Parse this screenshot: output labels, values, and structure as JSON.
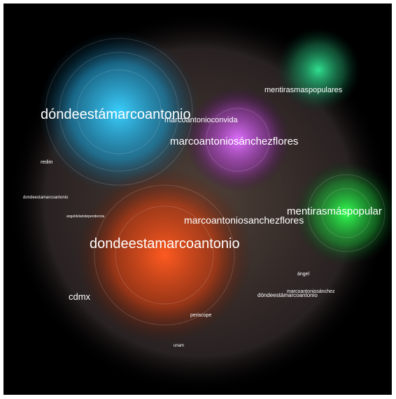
{
  "nodes": [
    {
      "label": "dóndeestámarcoantonio"
    },
    {
      "label": "marcoantonioconvida"
    },
    {
      "label": "marcoantoniosánchezflores"
    },
    {
      "label": "mentirasmaspopulares"
    },
    {
      "label": "redim"
    },
    {
      "label": "dondeestamarcoantonio"
    },
    {
      "label": "angeldelaindependencia"
    },
    {
      "label": "mentirasmáspopular"
    },
    {
      "label": "marcoantoniosanchezflores"
    },
    {
      "label": "dondeestamarcoantonio"
    },
    {
      "label": "cdmx"
    },
    {
      "label": "ángel"
    },
    {
      "label": "marcoantoniosánchez"
    },
    {
      "label": "dóndeestámarcoantonio"
    },
    {
      "label": "periscope"
    },
    {
      "label": "unam"
    }
  ]
}
